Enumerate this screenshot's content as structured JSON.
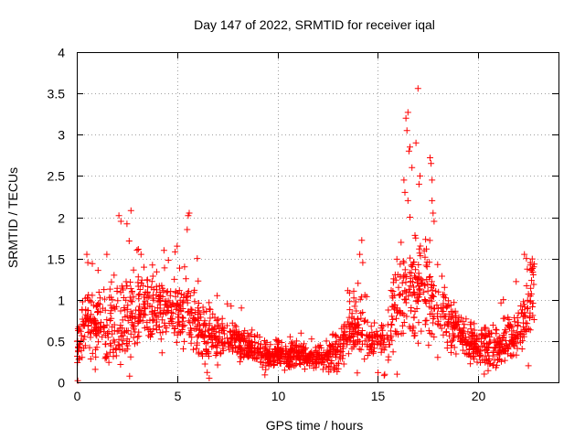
{
  "chart_data": {
    "type": "scatter",
    "title": "Day 147 of 2022, SRMTID for receiver iqal",
    "xlabel": "GPS time / hours",
    "ylabel": "SRMTID / TECUs",
    "xlim": [
      0,
      24
    ],
    "ylim": [
      0,
      4
    ],
    "x_ticks": [
      0,
      5,
      10,
      15,
      20
    ],
    "x_tick_labels": [
      "0",
      "5",
      "10",
      "15",
      "20"
    ],
    "y_ticks": [
      0,
      0.5,
      1,
      1.5,
      2,
      2.5,
      3,
      3.5,
      4
    ],
    "y_tick_labels": [
      "0",
      "0.5",
      "1",
      "1.5",
      "2",
      "2.5",
      "3",
      "3.5",
      "4"
    ],
    "grid": true,
    "marker": "plus",
    "series_color": "#ff0000",
    "trend": {
      "x": [
        0,
        0.5,
        1,
        1.5,
        2,
        2.5,
        3,
        3.5,
        4,
        4.5,
        5,
        5.5,
        6,
        6.5,
        7,
        7.5,
        8,
        8.5,
        9,
        9.5,
        10,
        10.5,
        11,
        11.5,
        12,
        12.5,
        13,
        13.5,
        14,
        14.5,
        15,
        15.5,
        16,
        16.5,
        17,
        17.5,
        18,
        18.5,
        19,
        19.5,
        20,
        20.5,
        21,
        21.5,
        22,
        22.5,
        22.8
      ],
      "y": [
        0.4,
        0.75,
        0.7,
        0.65,
        0.7,
        0.75,
        0.85,
        1.0,
        0.9,
        0.85,
        0.85,
        0.9,
        0.7,
        0.55,
        0.55,
        0.5,
        0.5,
        0.45,
        0.35,
        0.3,
        0.35,
        0.3,
        0.35,
        0.3,
        0.3,
        0.3,
        0.35,
        0.6,
        0.7,
        0.55,
        0.5,
        0.6,
        0.9,
        1.1,
        1.2,
        1.0,
        0.8,
        0.7,
        0.6,
        0.45,
        0.45,
        0.4,
        0.4,
        0.5,
        0.6,
        0.9,
        1.2
      ],
      "spread": [
        0.15,
        0.35,
        0.4,
        0.4,
        0.45,
        0.45,
        0.45,
        0.4,
        0.35,
        0.35,
        0.35,
        0.4,
        0.35,
        0.3,
        0.25,
        0.2,
        0.15,
        0.15,
        0.15,
        0.12,
        0.12,
        0.12,
        0.12,
        0.12,
        0.12,
        0.12,
        0.2,
        0.3,
        0.35,
        0.3,
        0.25,
        0.35,
        0.5,
        0.6,
        0.6,
        0.5,
        0.35,
        0.3,
        0.25,
        0.2,
        0.2,
        0.2,
        0.2,
        0.25,
        0.3,
        0.35,
        0.3
      ]
    },
    "points": [
      [
        2.1,
        2.02
      ],
      [
        2.2,
        1.95
      ],
      [
        2.5,
        1.92
      ],
      [
        2.7,
        2.08
      ],
      [
        5.6,
        2.05
      ],
      [
        5.55,
        2.02
      ],
      [
        5.5,
        1.85
      ],
      [
        16.4,
        3.2
      ],
      [
        16.5,
        3.27
      ],
      [
        16.45,
        3.05
      ],
      [
        16.55,
        2.8
      ],
      [
        16.6,
        2.85
      ],
      [
        16.7,
        2.6
      ],
      [
        17.0,
        3.56
      ],
      [
        16.9,
        2.9
      ],
      [
        17.1,
        2.5
      ],
      [
        17.05,
        2.4
      ],
      [
        17.6,
        2.72
      ],
      [
        17.65,
        2.65
      ],
      [
        17.7,
        2.45
      ],
      [
        17.7,
        2.2
      ],
      [
        17.75,
        2.05
      ],
      [
        17.8,
        1.95
      ],
      [
        16.3,
        2.45
      ],
      [
        16.35,
        2.3
      ],
      [
        16.5,
        2.2
      ],
      [
        16.6,
        2.0
      ],
      [
        14.2,
        1.72
      ],
      [
        14.1,
        1.55
      ],
      [
        14.25,
        1.45
      ],
      [
        3.0,
        1.6
      ],
      [
        3.2,
        1.55
      ],
      [
        0.5,
        1.55
      ],
      [
        0.55,
        1.45
      ],
      [
        1.5,
        1.55
      ],
      [
        22.3,
        1.55
      ],
      [
        22.4,
        1.5
      ],
      [
        22.6,
        1.45
      ],
      [
        22.7,
        1.38
      ],
      [
        6.6,
        0.05
      ],
      [
        6.5,
        0.12
      ],
      [
        0.05,
        0.02
      ],
      [
        20.3,
        0.1
      ],
      [
        22.5,
        0.2
      ],
      [
        12.8,
        0.15
      ],
      [
        5.0,
        1.65
      ],
      [
        4.9,
        1.58
      ],
      [
        6.0,
        1.5
      ],
      [
        7.5,
        0.95
      ],
      [
        8.2,
        0.9
      ]
    ]
  }
}
